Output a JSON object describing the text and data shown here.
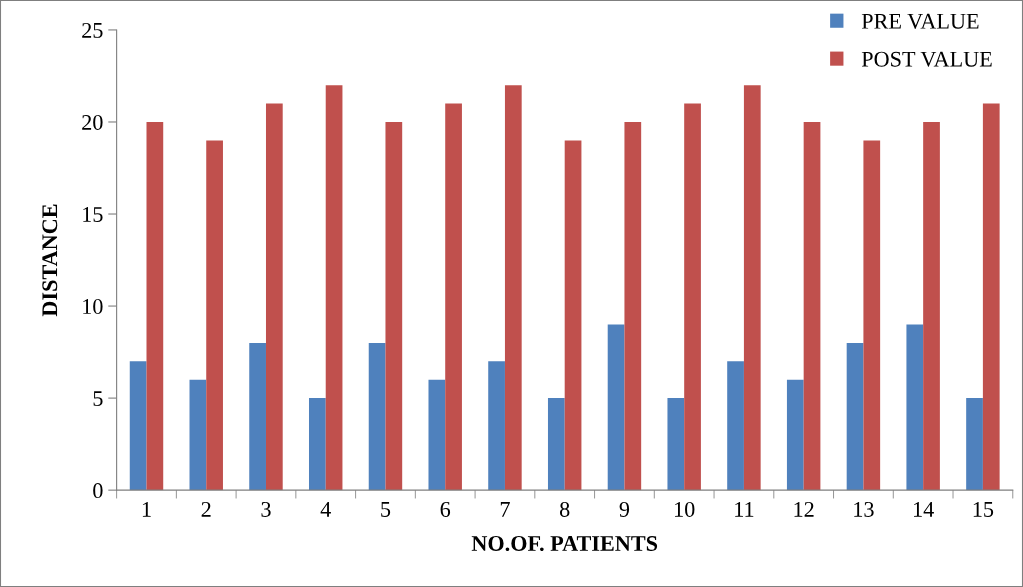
{
  "chart_data": {
    "type": "bar",
    "xlabel": "NO.OF. PATIENTS",
    "ylabel": "DISTANCE",
    "categories": [
      "1",
      "2",
      "3",
      "4",
      "5",
      "6",
      "7",
      "8",
      "9",
      "10",
      "11",
      "12",
      "13",
      "14",
      "15"
    ],
    "series": [
      {
        "name": "PRE VALUE",
        "color": "#4f81bd",
        "values": [
          7,
          6,
          8,
          5,
          8,
          6,
          7,
          5,
          9,
          5,
          7,
          6,
          8,
          9,
          5
        ]
      },
      {
        "name": "POST VALUE",
        "color": "#c0504d",
        "values": [
          20,
          19,
          21,
          22,
          20,
          21,
          22,
          19,
          20,
          21,
          22,
          20,
          19,
          20,
          21
        ]
      }
    ],
    "ylim": [
      0,
      25
    ],
    "yticks": [
      0,
      5,
      10,
      15,
      20,
      25
    ],
    "grid": false,
    "legend": "top right"
  }
}
